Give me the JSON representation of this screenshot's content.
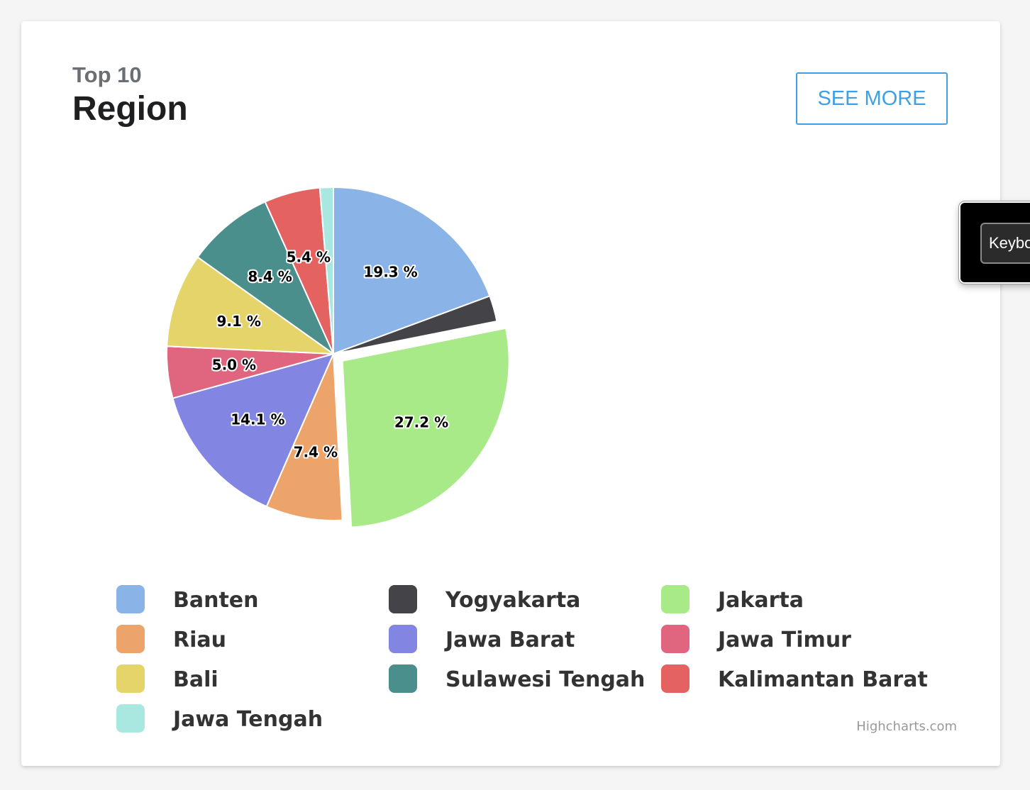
{
  "header": {
    "subtitle": "Top 10",
    "title": "Region",
    "see_more_label": "SEE MORE"
  },
  "keyboard_popup": {
    "label": "Keybo"
  },
  "credits": "Highcharts.com",
  "chart_data": {
    "type": "pie",
    "title": "Region",
    "subtitle": "Top 10",
    "legend_placement": "bottom",
    "value_format": "percent",
    "sliced_slice": "Jakarta",
    "series": [
      {
        "name": "",
        "data": [
          {
            "name": "Banten",
            "value": 19.3,
            "label": "19.3 %",
            "color": "#8ab4e8"
          },
          {
            "name": "Yogyakarta",
            "value": 2.5,
            "label": "",
            "color": "#434348"
          },
          {
            "name": "Jakarta",
            "value": 27.2,
            "label": "27.2 %",
            "color": "#a8ea88"
          },
          {
            "name": "Riau",
            "value": 7.4,
            "label": "7.4 %",
            "color": "#eca46a"
          },
          {
            "name": "Jawa Barat",
            "value": 14.1,
            "label": "14.1 %",
            "color": "#8286e2"
          },
          {
            "name": "Jawa Timur",
            "value": 5.0,
            "label": "5.0 %",
            "color": "#e06680"
          },
          {
            "name": "Bali",
            "value": 9.1,
            "label": "9.1 %",
            "color": "#e4d46a"
          },
          {
            "name": "Sulawesi Tengah",
            "value": 8.4,
            "label": "8.4 %",
            "color": "#4b8f8c"
          },
          {
            "name": "Kalimantan Barat",
            "value": 5.4,
            "label": "5.4 %",
            "color": "#e4625f"
          },
          {
            "name": "Jawa Tengah",
            "value": 1.3,
            "label": "",
            "color": "#a8e8e0"
          }
        ]
      }
    ]
  }
}
